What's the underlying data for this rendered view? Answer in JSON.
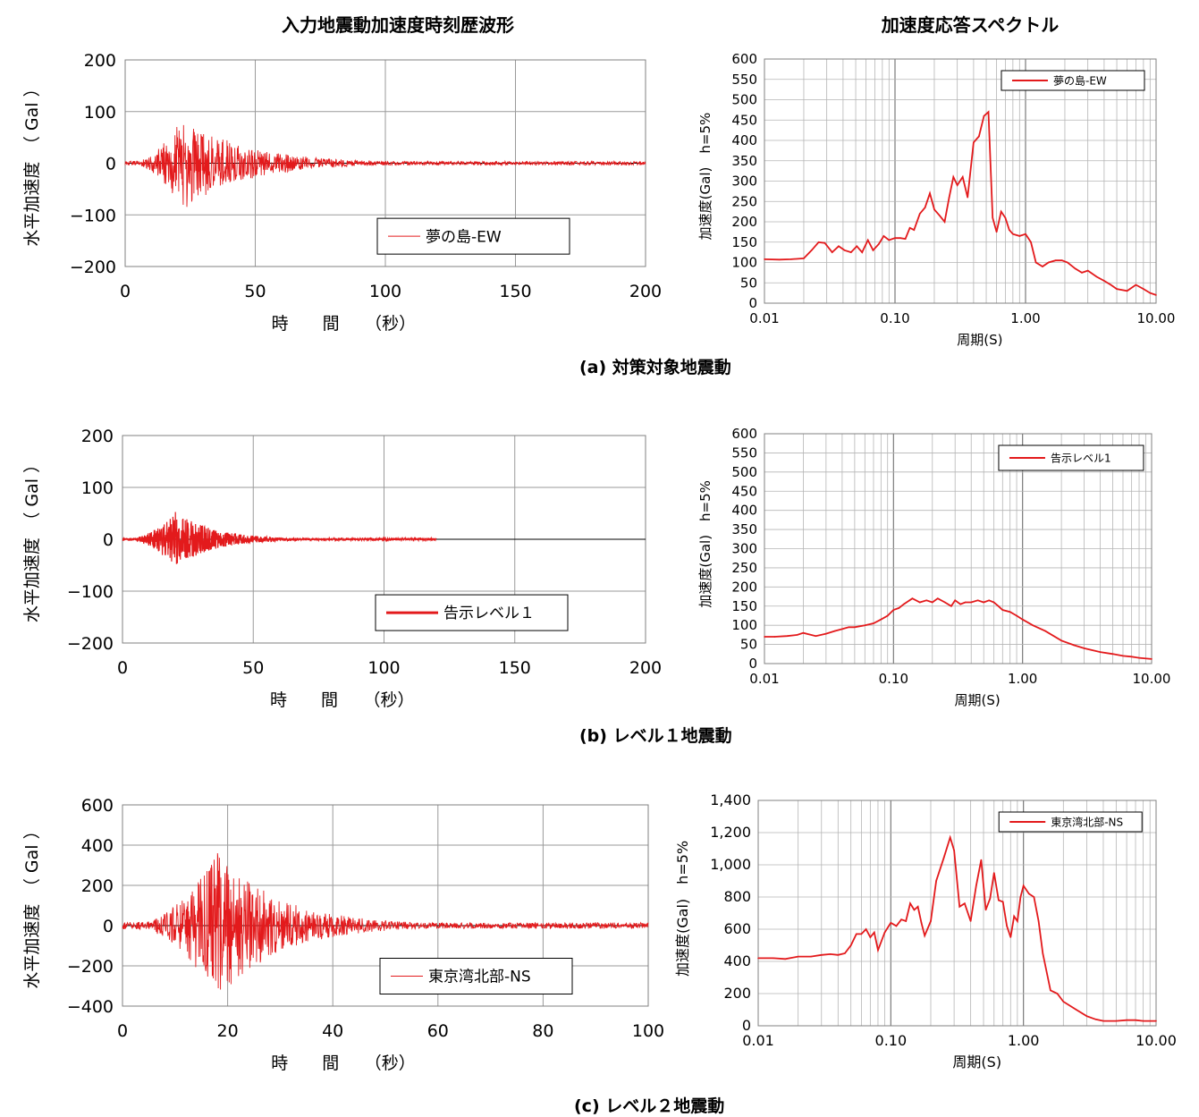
{
  "headers": {
    "waveform": "入力地震動加速度時刻歴波形",
    "spectrum": "加速度応答スペクトル"
  },
  "captions": [
    "(a) 対策対象地震動",
    "(b) レベル１地震動",
    "(c) レベル２地震動"
  ],
  "colors": {
    "series": "#e31a1c",
    "grid": "#9a9a9a",
    "axis": "#000000"
  },
  "chart_data": [
    {
      "id": "a-wave",
      "type": "line",
      "xlabel": "時　　間　　（秒）",
      "ylabel": "水平加速度　（ Gal ）",
      "xlim": [
        0,
        200
      ],
      "ylim": [
        -200,
        200
      ],
      "xticks": [
        0,
        50,
        100,
        150,
        200
      ],
      "yticks": [
        -200,
        -100,
        0,
        100,
        200
      ],
      "xtick_labels": [
        "0",
        "50",
        "100",
        "150",
        "200"
      ],
      "ytick_labels": [
        "−200",
        "−100",
        "0",
        "100",
        "200"
      ],
      "legend": "夢の島-EW",
      "legend_position": "bottom-right",
      "series": [
        {
          "name": "夢の島-EW",
          "duration": 200,
          "peak_max": 108,
          "peak_min": -95,
          "peak_time": 22
        }
      ]
    },
    {
      "id": "a-spec",
      "type": "line",
      "xscale": "log",
      "xlabel": "周期(S)",
      "ylabel": "加速度(Gal)　h=5%",
      "xlim": [
        0.01,
        10
      ],
      "ylim": [
        0,
        600
      ],
      "xticks": [
        0.01,
        0.1,
        1,
        10
      ],
      "xtick_labels": [
        "0.01",
        "0.10",
        "1.00",
        "10.00"
      ],
      "yticks": [
        0,
        50,
        100,
        150,
        200,
        250,
        300,
        350,
        400,
        450,
        500,
        550,
        600
      ],
      "ytick_labels": [
        "0",
        "50",
        "100",
        "150",
        "200",
        "250",
        "300",
        "350",
        "400",
        "450",
        "500",
        "550",
        "600"
      ],
      "legend": "夢の島-EW",
      "legend_position": "top-right",
      "series": [
        {
          "name": "夢の島-EW",
          "x": [
            0.01,
            0.013,
            0.016,
            0.02,
            0.023,
            0.026,
            0.029,
            0.033,
            0.037,
            0.041,
            0.046,
            0.051,
            0.056,
            0.062,
            0.068,
            0.075,
            0.082,
            0.09,
            0.1,
            0.11,
            0.12,
            0.13,
            0.14,
            0.155,
            0.17,
            0.185,
            0.2,
            0.22,
            0.24,
            0.26,
            0.28,
            0.3,
            0.33,
            0.36,
            0.4,
            0.44,
            0.48,
            0.52,
            0.56,
            0.6,
            0.65,
            0.7,
            0.75,
            0.8,
            0.9,
            1.0,
            1.1,
            1.2,
            1.35,
            1.5,
            1.7,
            1.9,
            2.1,
            2.4,
            2.7,
            3.0,
            3.5,
            4.0,
            4.5,
            5.0,
            6.0,
            7.0,
            8.0,
            9.0,
            10.0
          ],
          "y": [
            108,
            107,
            108,
            110,
            130,
            150,
            148,
            125,
            140,
            130,
            125,
            140,
            125,
            155,
            130,
            145,
            165,
            155,
            160,
            160,
            158,
            185,
            180,
            220,
            235,
            270,
            230,
            215,
            200,
            260,
            310,
            290,
            310,
            260,
            395,
            410,
            460,
            470,
            210,
            175,
            225,
            210,
            180,
            170,
            165,
            170,
            150,
            100,
            90,
            100,
            105,
            105,
            100,
            85,
            75,
            80,
            65,
            55,
            45,
            35,
            30,
            45,
            35,
            25,
            20
          ]
        }
      ]
    },
    {
      "id": "b-wave",
      "type": "line",
      "xlabel": "時　　間　　（秒）",
      "ylabel": "水平加速度　（ Gal ）",
      "xlim": [
        0,
        200
      ],
      "ylim": [
        -200,
        200
      ],
      "xticks": [
        0,
        50,
        100,
        150,
        200
      ],
      "yticks": [
        -200,
        -100,
        0,
        100,
        200
      ],
      "xtick_labels": [
        "0",
        "50",
        "100",
        "150",
        "200"
      ],
      "ytick_labels": [
        "−200",
        "−100",
        "0",
        "100",
        "200"
      ],
      "legend": "告示レベル１",
      "legend_position": "bottom-right",
      "series": [
        {
          "name": "告示レベル１",
          "duration": 120,
          "peak_max": 65,
          "peak_min": -70,
          "peak_time": 20
        }
      ]
    },
    {
      "id": "b-spec",
      "type": "line",
      "xscale": "log",
      "xlabel": "周期(S)",
      "ylabel": "加速度(Gal)　h=5%",
      "xlim": [
        0.01,
        10
      ],
      "ylim": [
        0,
        600
      ],
      "xticks": [
        0.01,
        0.1,
        1,
        10
      ],
      "xtick_labels": [
        "0.01",
        "0.10",
        "1.00",
        "10.00"
      ],
      "yticks": [
        0,
        50,
        100,
        150,
        200,
        250,
        300,
        350,
        400,
        450,
        500,
        550,
        600
      ],
      "ytick_labels": [
        "0",
        "50",
        "100",
        "150",
        "200",
        "250",
        "300",
        "350",
        "400",
        "450",
        "500",
        "550",
        "600"
      ],
      "legend": "告示レベル1",
      "legend_position": "top-right",
      "series": [
        {
          "name": "告示レベル1",
          "x": [
            0.01,
            0.012,
            0.015,
            0.018,
            0.02,
            0.025,
            0.03,
            0.035,
            0.04,
            0.045,
            0.05,
            0.06,
            0.07,
            0.08,
            0.09,
            0.1,
            0.11,
            0.12,
            0.14,
            0.16,
            0.18,
            0.2,
            0.22,
            0.25,
            0.28,
            0.3,
            0.33,
            0.36,
            0.4,
            0.45,
            0.5,
            0.55,
            0.6,
            0.65,
            0.7,
            0.8,
            0.9,
            1.0,
            1.2,
            1.5,
            2.0,
            2.5,
            3.0,
            4.0,
            5.0,
            6.0,
            7.0,
            8.0,
            10.0
          ],
          "y": [
            70,
            70,
            72,
            75,
            80,
            72,
            78,
            85,
            90,
            95,
            95,
            100,
            105,
            115,
            125,
            140,
            145,
            155,
            170,
            160,
            165,
            160,
            170,
            160,
            150,
            165,
            155,
            160,
            160,
            165,
            160,
            165,
            160,
            150,
            140,
            135,
            125,
            115,
            100,
            85,
            60,
            48,
            40,
            30,
            25,
            20,
            18,
            15,
            12
          ]
        }
      ]
    },
    {
      "id": "c-wave",
      "type": "line",
      "xlabel": "時　　間　　（秒）",
      "ylabel": "水平加速度　（ Gal ）",
      "xlim": [
        0,
        100
      ],
      "ylim": [
        -400,
        600
      ],
      "xticks": [
        0,
        20,
        40,
        60,
        80,
        100
      ],
      "yticks": [
        -400,
        -200,
        0,
        200,
        400,
        600
      ],
      "xtick_labels": [
        "0",
        "20",
        "40",
        "60",
        "80",
        "100"
      ],
      "ytick_labels": [
        "−400",
        "−200",
        "0",
        "200",
        "400",
        "600"
      ],
      "legend": "東京湾北部-NS",
      "legend_position": "bottom-right",
      "series": [
        {
          "name": "東京湾北部-NS",
          "duration": 100,
          "peak_max": 430,
          "peak_min": -335,
          "peak_time": 18
        }
      ]
    },
    {
      "id": "c-spec",
      "type": "line",
      "xscale": "log",
      "xlabel": "周期(S)",
      "ylabel": "加速度(Gal)　h=5%",
      "xlim": [
        0.01,
        10
      ],
      "ylim": [
        0,
        1400
      ],
      "xticks": [
        0.01,
        0.1,
        1,
        10
      ],
      "xtick_labels": [
        "0.01",
        "0.10",
        "1.00",
        "10.00"
      ],
      "yticks": [
        0,
        200,
        400,
        600,
        800,
        1000,
        1200,
        1400
      ],
      "ytick_labels": [
        "0",
        "200",
        "400",
        "600",
        "800",
        "1,000",
        "1,200",
        "1,400"
      ],
      "legend": "東京湾北部-NS",
      "legend_position": "top-right",
      "series": [
        {
          "name": "東京湾北部-NS",
          "x": [
            0.01,
            0.013,
            0.016,
            0.02,
            0.025,
            0.03,
            0.035,
            0.04,
            0.045,
            0.05,
            0.055,
            0.06,
            0.065,
            0.07,
            0.075,
            0.08,
            0.09,
            0.1,
            0.11,
            0.12,
            0.13,
            0.14,
            0.15,
            0.16,
            0.17,
            0.18,
            0.2,
            0.22,
            0.25,
            0.28,
            0.3,
            0.33,
            0.36,
            0.4,
            0.44,
            0.48,
            0.52,
            0.56,
            0.6,
            0.65,
            0.7,
            0.75,
            0.8,
            0.85,
            0.9,
            0.95,
            1.0,
            1.1,
            1.2,
            1.3,
            1.4,
            1.6,
            1.8,
            2.0,
            2.5,
            3.0,
            3.5,
            4.0,
            5.0,
            6.0,
            7.0,
            8.0,
            10.0
          ],
          "y": [
            420,
            420,
            415,
            430,
            430,
            440,
            445,
            440,
            450,
            500,
            570,
            570,
            600,
            550,
            580,
            470,
            580,
            640,
            620,
            660,
            650,
            760,
            720,
            740,
            640,
            560,
            650,
            900,
            1040,
            1170,
            1090,
            740,
            760,
            650,
            870,
            1030,
            720,
            790,
            950,
            780,
            770,
            620,
            550,
            680,
            650,
            800,
            870,
            820,
            800,
            650,
            450,
            220,
            200,
            150,
            100,
            60,
            40,
            30,
            30,
            35,
            35,
            30,
            30
          ]
        }
      ]
    }
  ]
}
